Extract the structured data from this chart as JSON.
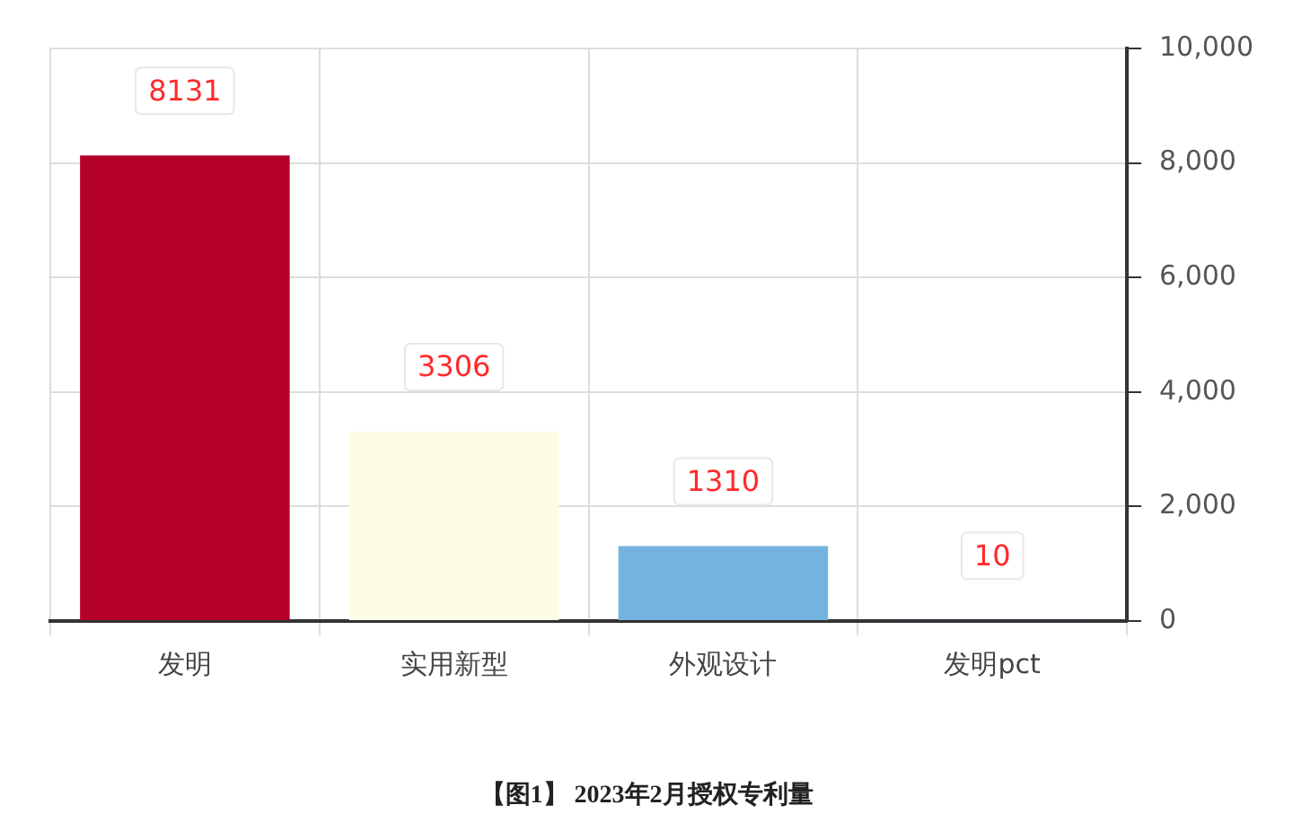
{
  "chart_data": {
    "type": "bar",
    "categories": [
      "发明",
      "实用新型",
      "外观设计",
      "发明pct"
    ],
    "values": [
      8131,
      3306,
      1310,
      10
    ],
    "colors": [
      "#b5002a",
      "#fcfde4",
      "#74b3de",
      "#2e3187"
    ],
    "ylim": [
      0,
      10000
    ],
    "yticks": [
      0,
      {
        "value": 2000,
        "label": "2,000"
      },
      {
        "value": 4000,
        "label": "4,000"
      },
      {
        "value": 6000,
        "label": "6,000"
      },
      {
        "value": 8000,
        "label": "8,000"
      },
      {
        "value": 10000,
        "label": "10,000"
      }
    ],
    "grid": true,
    "data_labels": true,
    "legend": false,
    "annotations": [
      "【图1】 2023年2月授权专利量"
    ]
  }
}
